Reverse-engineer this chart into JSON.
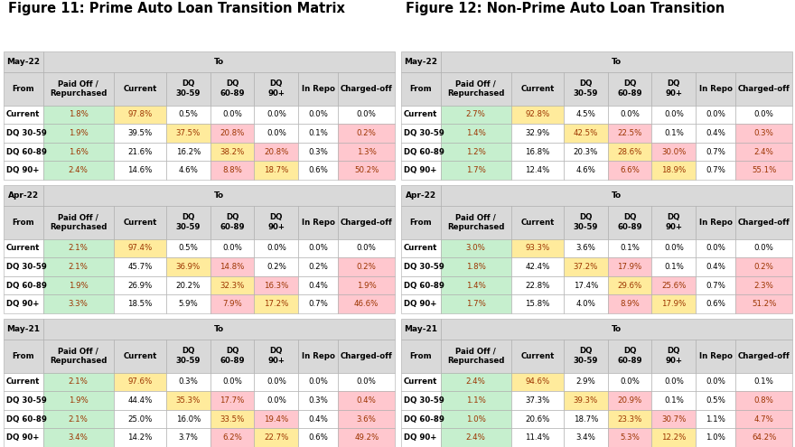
{
  "fig_title_left": "Figure 11: Prime Auto Loan Transition Matrix",
  "fig_title_right": "Figure 12: Non-Prime Auto Loan Transition",
  "col_headers": [
    "Paid Off /\nRepurchased",
    "Current",
    "DQ\n30-59",
    "DQ\n60-89",
    "DQ\n90+",
    "In Repo",
    "Charged-off"
  ],
  "row_headers": [
    "Current",
    "DQ 30-59",
    "DQ 60-89",
    "DQ 90+"
  ],
  "period_headers": [
    "May-22",
    "Apr-22",
    "May-21"
  ],
  "prime_data": [
    [
      [
        "1.8%",
        "97.8%",
        "0.5%",
        "0.0%",
        "0.0%",
        "0.0%",
        "0.0%"
      ],
      [
        "1.9%",
        "39.5%",
        "37.5%",
        "20.8%",
        "0.0%",
        "0.1%",
        "0.2%"
      ],
      [
        "1.6%",
        "21.6%",
        "16.2%",
        "38.2%",
        "20.8%",
        "0.3%",
        "1.3%"
      ],
      [
        "2.4%",
        "14.6%",
        "4.6%",
        "8.8%",
        "18.7%",
        "0.6%",
        "50.2%"
      ]
    ],
    [
      [
        "2.1%",
        "97.4%",
        "0.5%",
        "0.0%",
        "0.0%",
        "0.0%",
        "0.0%"
      ],
      [
        "2.1%",
        "45.7%",
        "36.9%",
        "14.8%",
        "0.2%",
        "0.2%",
        "0.2%"
      ],
      [
        "1.9%",
        "26.9%",
        "20.2%",
        "32.3%",
        "16.3%",
        "0.4%",
        "1.9%"
      ],
      [
        "3.3%",
        "18.5%",
        "5.9%",
        "7.9%",
        "17.2%",
        "0.7%",
        "46.6%"
      ]
    ],
    [
      [
        "2.1%",
        "97.6%",
        "0.3%",
        "0.0%",
        "0.0%",
        "0.0%",
        "0.0%"
      ],
      [
        "1.9%",
        "44.4%",
        "35.3%",
        "17.7%",
        "0.0%",
        "0.3%",
        "0.4%"
      ],
      [
        "2.1%",
        "25.0%",
        "16.0%",
        "33.5%",
        "19.4%",
        "0.4%",
        "3.6%"
      ],
      [
        "3.4%",
        "14.2%",
        "3.7%",
        "6.2%",
        "22.7%",
        "0.6%",
        "49.2%"
      ]
    ]
  ],
  "nonprime_data": [
    [
      [
        "2.7%",
        "92.8%",
        "4.5%",
        "0.0%",
        "0.0%",
        "0.0%",
        "0.0%"
      ],
      [
        "1.4%",
        "32.9%",
        "42.5%",
        "22.5%",
        "0.1%",
        "0.4%",
        "0.3%"
      ],
      [
        "1.2%",
        "16.8%",
        "20.3%",
        "28.6%",
        "30.0%",
        "0.7%",
        "2.4%"
      ],
      [
        "1.7%",
        "12.4%",
        "4.6%",
        "6.6%",
        "18.9%",
        "0.7%",
        "55.1%"
      ]
    ],
    [
      [
        "3.0%",
        "93.3%",
        "3.6%",
        "0.1%",
        "0.0%",
        "0.0%",
        "0.0%"
      ],
      [
        "1.8%",
        "42.4%",
        "37.2%",
        "17.9%",
        "0.1%",
        "0.4%",
        "0.2%"
      ],
      [
        "1.4%",
        "22.8%",
        "17.4%",
        "29.6%",
        "25.6%",
        "0.7%",
        "2.3%"
      ],
      [
        "1.7%",
        "15.8%",
        "4.0%",
        "8.9%",
        "17.9%",
        "0.6%",
        "51.2%"
      ]
    ],
    [
      [
        "2.4%",
        "94.6%",
        "2.9%",
        "0.0%",
        "0.0%",
        "0.0%",
        "0.1%"
      ],
      [
        "1.1%",
        "37.3%",
        "39.3%",
        "20.9%",
        "0.1%",
        "0.5%",
        "0.8%"
      ],
      [
        "1.0%",
        "20.6%",
        "18.7%",
        "23.3%",
        "30.7%",
        "1.1%",
        "4.7%"
      ],
      [
        "2.4%",
        "11.4%",
        "3.4%",
        "5.3%",
        "12.2%",
        "1.0%",
        "64.2%"
      ]
    ]
  ],
  "color_green": "#c6efce",
  "color_yellow": "#ffeb9c",
  "color_pink": "#ffc7ce",
  "color_header_bg": "#d9d9d9",
  "color_white": "#ffffff",
  "text_normal": "#000000",
  "text_colored": "#9c3400",
  "text_bold_header": "#000000",
  "background_color": "#ffffff",
  "border_color": "#aaaaaa",
  "title_fontsize": 10.5,
  "header_fontsize": 6.2,
  "data_fontsize": 6.2,
  "period_fontsize": 6.5
}
